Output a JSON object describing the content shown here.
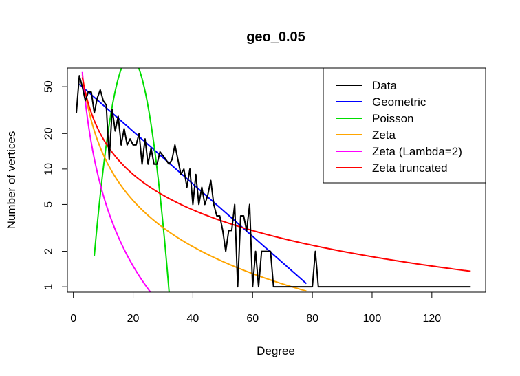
{
  "chart_data": {
    "type": "line",
    "title": "geo_0.05",
    "xlabel": "Degree",
    "ylabel": "Number of vertices",
    "xlim": [
      -2,
      138
    ],
    "ylim": [
      0.9,
      72
    ],
    "y_scale": "log",
    "x_ticks": [
      0,
      20,
      40,
      60,
      80,
      100,
      120
    ],
    "y_ticks": [
      1,
      2,
      5,
      10,
      20,
      50
    ],
    "legend_position": "top-right",
    "grid": false,
    "series": [
      {
        "name": "Data",
        "color": "#000000",
        "x": [
          1,
          2,
          3,
          4,
          5,
          6,
          7,
          8,
          9,
          10,
          11,
          12,
          13,
          14,
          15,
          16,
          17,
          18,
          19,
          20,
          21,
          22,
          23,
          24,
          25,
          26,
          27,
          28,
          29,
          30,
          31,
          32,
          33,
          34,
          35,
          36,
          37,
          38,
          39,
          40,
          41,
          42,
          43,
          44,
          45,
          46,
          47,
          48,
          49,
          50,
          51,
          52,
          53,
          54,
          55,
          56,
          57,
          58,
          59,
          60,
          61,
          62,
          63,
          64,
          65,
          66,
          67,
          68,
          69,
          70,
          71,
          72,
          73,
          74,
          75,
          76,
          77,
          78,
          79,
          80,
          81,
          82,
          83,
          133
        ],
        "y": [
          30,
          62,
          50,
          38,
          45,
          45,
          30,
          40,
          47,
          38,
          35,
          12,
          32,
          21,
          28,
          16,
          22,
          16,
          18,
          16,
          16,
          20,
          11,
          18,
          11,
          15,
          11,
          11,
          14,
          13,
          12,
          11,
          12,
          16,
          12,
          9,
          10,
          7,
          10,
          5,
          9,
          5,
          7,
          5,
          6,
          8,
          5,
          4,
          4,
          3,
          2,
          3,
          3,
          5,
          1,
          4,
          4,
          3,
          5,
          1,
          2,
          1,
          2,
          2,
          2,
          2,
          1,
          1,
          1,
          1,
          1,
          1,
          1,
          1,
          1,
          1,
          1,
          1,
          1,
          1,
          2,
          1,
          1,
          1
        ]
      },
      {
        "name": "Geometric",
        "color": "#0000ff",
        "model": "geometric",
        "x_range": [
          2,
          78
        ],
        "params": {
          "y_at_x2": 52.5,
          "ratio": 0.95
        }
      },
      {
        "name": "Poisson",
        "color": "#00dd00",
        "model": "poisson",
        "x_range": [
          7,
          34
        ],
        "params": {
          "peak_x": 19,
          "peak_y": 90,
          "sigma": 4.3
        }
      },
      {
        "name": "Zeta",
        "color": "#ffa500",
        "model": "power",
        "x_range": [
          3,
          78
        ],
        "params": {
          "coef": 265,
          "exponent": -1.3
        }
      },
      {
        "name": "Zeta (Lambda=2)",
        "color": "#ff00ff",
        "model": "power",
        "x_range": [
          3,
          27
        ],
        "params": {
          "coef": 600,
          "exponent": -2
        }
      },
      {
        "name": "Zeta truncated",
        "color": "#ff0000",
        "model": "power",
        "x_range": [
          3,
          133
        ],
        "params": {
          "coef": 180,
          "exponent": -1.0
        }
      }
    ]
  }
}
